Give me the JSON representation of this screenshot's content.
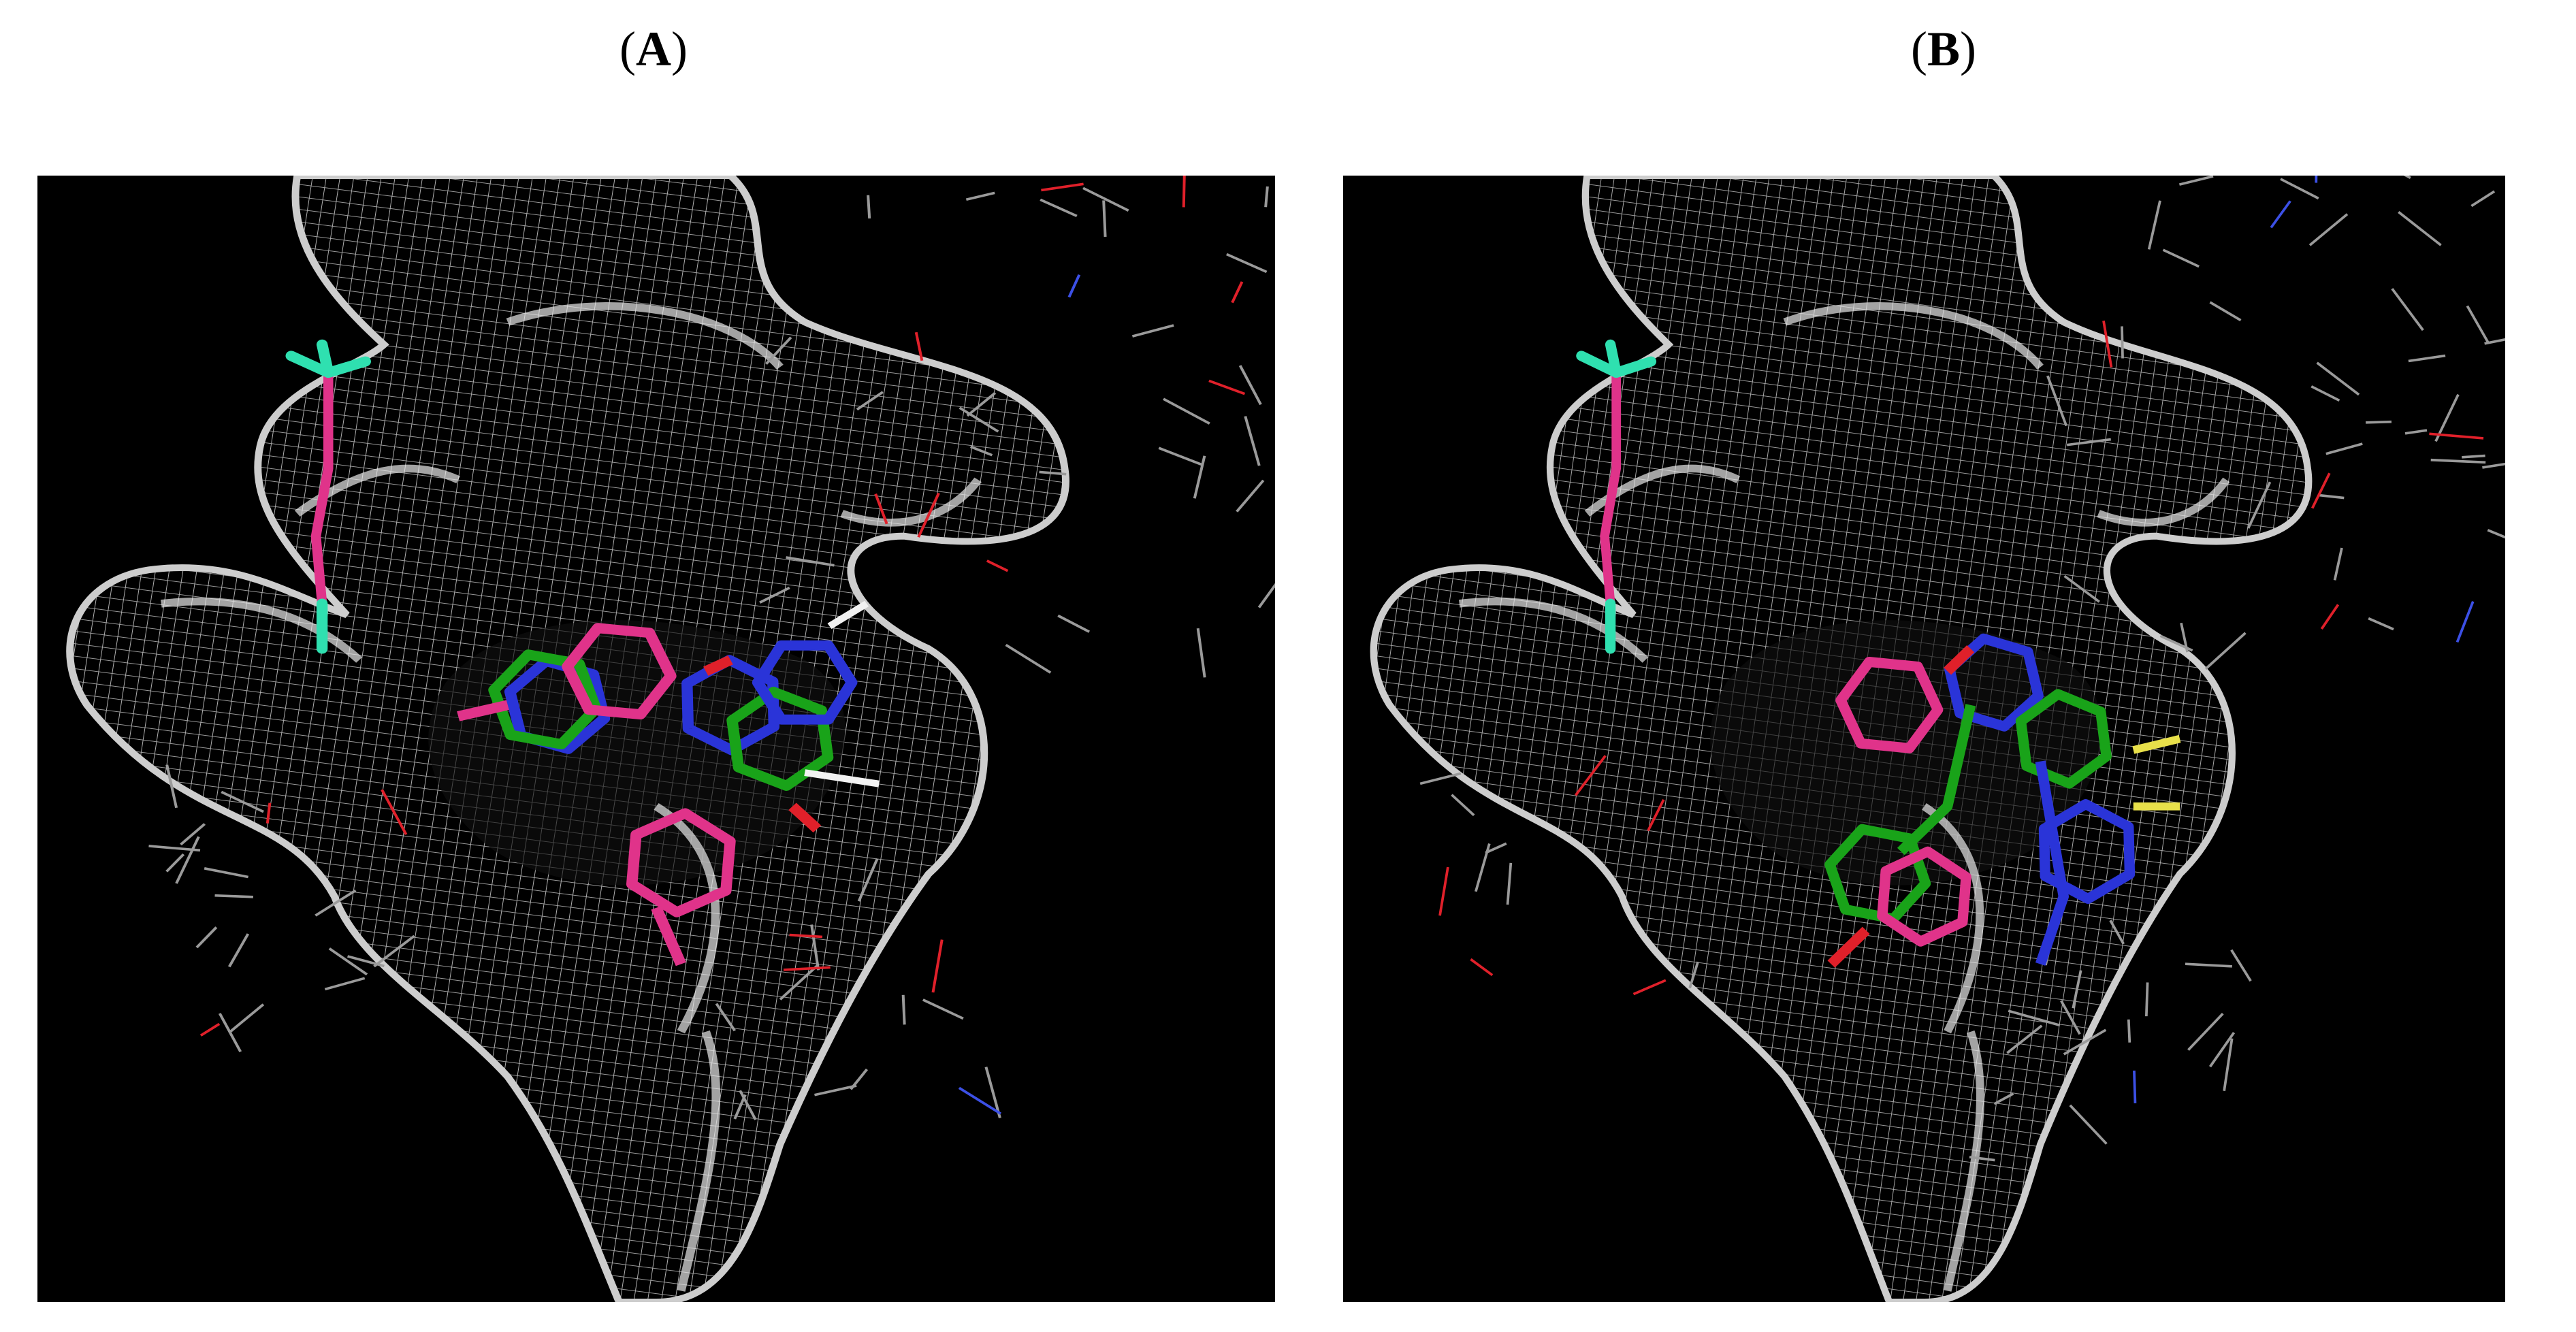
{
  "figure": {
    "panels": [
      {
        "label_open": "(",
        "label_letter": "A",
        "label_close": ")",
        "variant": "overlay-flat"
      },
      {
        "label_open": "(",
        "label_letter": "B",
        "label_close": ")",
        "variant": "overlay-folded"
      }
    ]
  },
  "colors": {
    "background": "#000000",
    "mesh": "#d9d9d9",
    "ligand_magenta": "#e0338a",
    "ligand_green": "#19a319",
    "ligand_blue": "#2a34d8",
    "oxygen_red": "#e0202a",
    "hydrogen_white": "#f2f2f2",
    "teal": "#2fe0b0",
    "sulfur_yellow": "#e8e04a",
    "residue_gray": "#9a9a9a"
  }
}
